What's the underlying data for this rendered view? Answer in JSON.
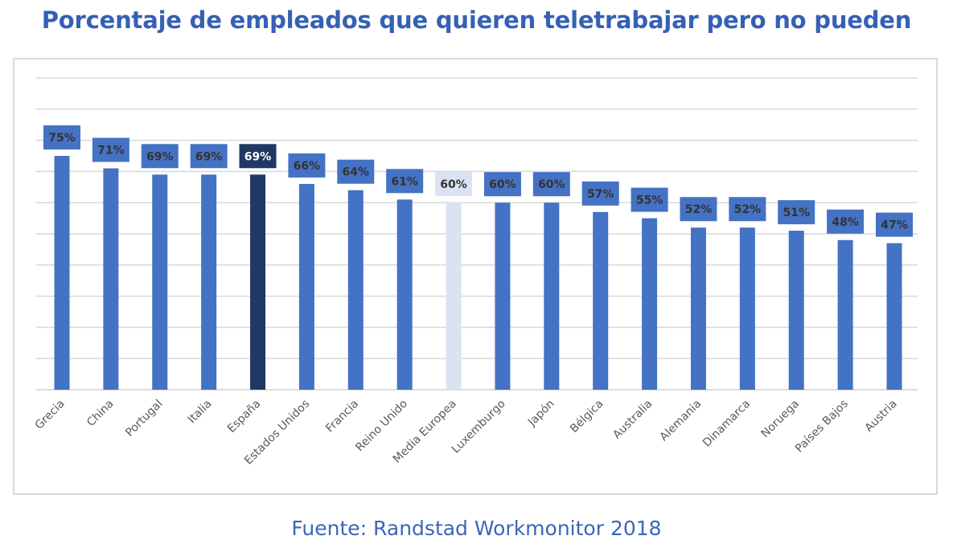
{
  "title": "Porcentaje de empleados que quieren teletrabajar pero no pueden",
  "source": "Fuente: Randstad Workmonitor 2018",
  "chart_data": {
    "type": "bar",
    "categories": [
      "Grecia",
      "China",
      "Portugal",
      "Italia",
      "España",
      "Estados Unidos",
      "Francia",
      "Reino Unido",
      "Media Europea",
      "Luxemburgo",
      "Japón",
      "Bélgica",
      "Australia",
      "Alemania",
      "Dinamarca",
      "Noruega",
      "Países Bajos",
      "Austria"
    ],
    "values": [
      75,
      71,
      69,
      69,
      69,
      66,
      64,
      61,
      60,
      60,
      60,
      57,
      55,
      52,
      52,
      51,
      48,
      47
    ],
    "data_labels": [
      "75%",
      "71%",
      "69%",
      "69%",
      "69%",
      "66%",
      "64%",
      "61%",
      "60%",
      "60%",
      "60%",
      "57%",
      "55%",
      "52%",
      "52%",
      "51%",
      "48%",
      "47%"
    ],
    "ylim": [
      0,
      100
    ],
    "grid": true,
    "colors": {
      "default": "#4472c4",
      "highlight": "#203864",
      "average": "#dae3f3",
      "label_text_default": "#333333",
      "label_text_highlight": "#ffffff"
    },
    "highlight_index": 4,
    "average_index": 8
  }
}
